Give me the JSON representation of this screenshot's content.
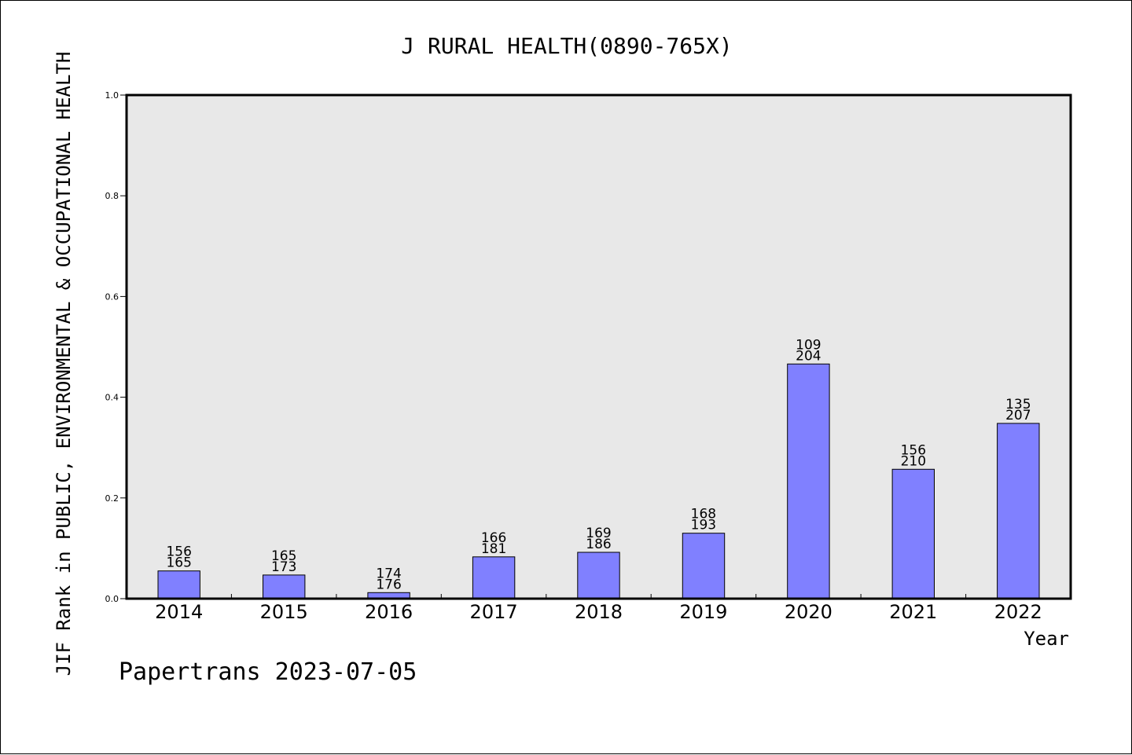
{
  "chart_data": {
    "type": "bar",
    "title": "J RURAL HEALTH(0890-765X)",
    "xlabel": "Year",
    "ylabel": "JIF Rank in PUBLIC, ENVIRONMENTAL & OCCUPATIONAL HEALTH",
    "ylim": [
      0,
      1.0
    ],
    "yticks": [
      "0.0",
      "0.2",
      "0.4",
      "0.6",
      "0.8",
      "1.0"
    ],
    "ytick_values": [
      0,
      0.2,
      0.4,
      0.6,
      0.8,
      1.0
    ],
    "categories": [
      "2014",
      "2015",
      "2016",
      "2017",
      "2018",
      "2019",
      "2020",
      "2021",
      "2022"
    ],
    "values": [
      0.055,
      0.047,
      0.012,
      0.083,
      0.092,
      0.13,
      0.466,
      0.257,
      0.348
    ],
    "rank": [
      "156",
      "165",
      "174",
      "166",
      "169",
      "168",
      "109",
      "156",
      "135"
    ],
    "total": [
      "165",
      "173",
      "176",
      "181",
      "186",
      "193",
      "204",
      "210",
      "207"
    ],
    "bar_color": "#8080ff",
    "plot_background": "#e8e8e8",
    "grid": false
  },
  "footer": {
    "credit": "Papertrans 2023-07-05"
  }
}
